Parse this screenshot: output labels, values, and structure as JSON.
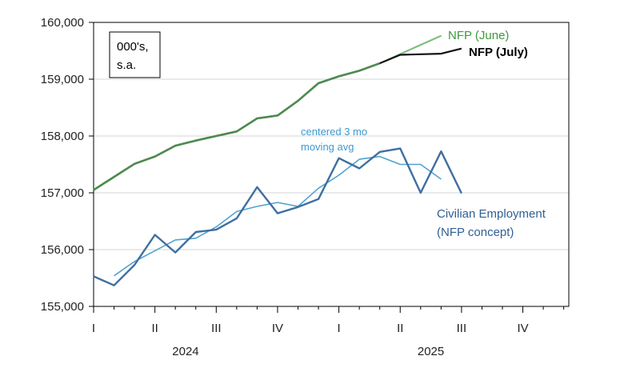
{
  "chart_data": {
    "type": "line",
    "ylim": [
      155000,
      160000
    ],
    "yticks": [
      155000,
      156000,
      157000,
      158000,
      159000,
      160000
    ],
    "ytick_labels": [
      "155,000",
      "156,000",
      "157,000",
      "158,000",
      "159,000",
      "160,000"
    ],
    "x_quarter_labels": [
      "I",
      "II",
      "III",
      "IV",
      "I",
      "II",
      "III",
      "IV"
    ],
    "x_year_labels": [
      {
        "label": "2024",
        "quarter_index": 1.5
      },
      {
        "label": "2025",
        "quarter_index": 5.5
      }
    ],
    "months": [
      "2024-01",
      "2024-02",
      "2024-03",
      "2024-04",
      "2024-05",
      "2024-06",
      "2024-07",
      "2024-08",
      "2024-09",
      "2024-10",
      "2024-11",
      "2024-12",
      "2025-01",
      "2025-02",
      "2025-03",
      "2025-04",
      "2025-05",
      "2025-06",
      "2025-07"
    ],
    "units_box": [
      "000's,",
      "s.a."
    ],
    "series": [
      {
        "name": "NFP (June)",
        "color": "#7fbf7f",
        "values": [
          157050,
          157280,
          157510,
          157640,
          157830,
          157920,
          158000,
          158080,
          158310,
          158360,
          158620,
          158930,
          159050,
          159150,
          159280,
          159450,
          159610,
          159770
        ]
      },
      {
        "name": "NFP (July)",
        "color": "#111111",
        "values": [
          157050,
          157280,
          157510,
          157640,
          157830,
          157920,
          158000,
          158080,
          158310,
          158360,
          158620,
          158930,
          159050,
          159150,
          159280,
          159430,
          159440,
          159450,
          159540
        ]
      },
      {
        "name": "Civilian Employment (NFP concept)",
        "color": "#3f6fa0",
        "values": [
          155530,
          155370,
          155730,
          156260,
          155950,
          156310,
          156350,
          156550,
          157100,
          156640,
          156750,
          156890,
          157610,
          157430,
          157720,
          157780,
          157000,
          157730,
          156990
        ]
      },
      {
        "name": "centered 3 mo moving avg",
        "color": "#4fa3d1",
        "values": [
          null,
          155540,
          155790,
          155980,
          156170,
          156200,
          156400,
          156670,
          156760,
          156830,
          156760,
          157080,
          157310,
          157590,
          157640,
          157500,
          157500,
          157240,
          null
        ]
      }
    ],
    "annotations": {
      "nfp_june": "NFP (June)",
      "nfp_july": "NFP (July)",
      "ma_line1": "centered 3 mo",
      "ma_line2": "moving avg",
      "civ_line1": "Civilian Employment",
      "civ_line2": "(NFP concept)"
    }
  }
}
